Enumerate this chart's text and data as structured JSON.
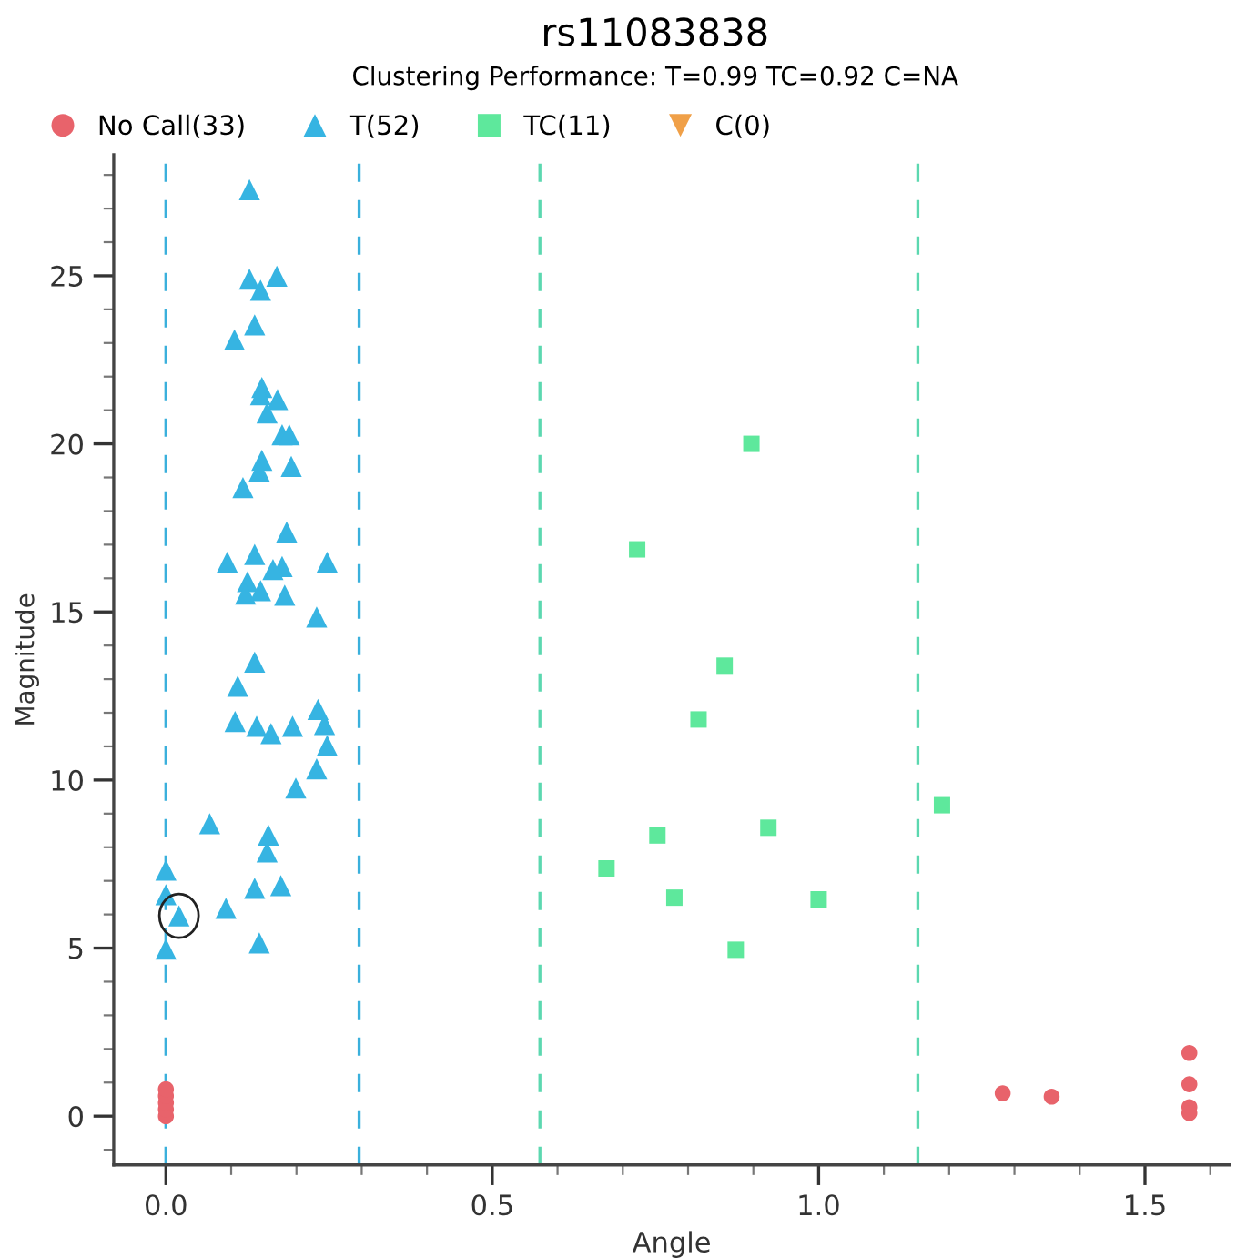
{
  "chart_data": {
    "type": "scatter",
    "title": "rs11083838",
    "subtitle": "Clustering Performance: T=0.99 TC=0.92 C=NA",
    "xlabel": "Angle",
    "ylabel": "Magnitude",
    "xlim": [
      -0.08,
      1.63
    ],
    "ylim": [
      -1.45,
      28.6
    ],
    "xticks": [
      {
        "value": 0,
        "label": "0.0"
      },
      {
        "value": 0.1,
        "label": null
      },
      {
        "value": 0.2,
        "label": null
      },
      {
        "value": 0.3,
        "label": null
      },
      {
        "value": 0.4,
        "label": null
      },
      {
        "value": 0.5,
        "label": "0.5"
      },
      {
        "value": 0.6,
        "label": null
      },
      {
        "value": 0.7,
        "label": null
      },
      {
        "value": 0.8,
        "label": null
      },
      {
        "value": 0.9,
        "label": null
      },
      {
        "value": 1.0,
        "label": "1.0"
      },
      {
        "value": 1.1,
        "label": null
      },
      {
        "value": 1.2,
        "label": null
      },
      {
        "value": 1.3,
        "label": null
      },
      {
        "value": 1.4,
        "label": null
      },
      {
        "value": 1.5,
        "label": "1.5"
      },
      {
        "value": 1.6,
        "label": null
      }
    ],
    "yticks": [
      {
        "value": -1,
        "label": null
      },
      0,
      {
        "value": 1,
        "label": null
      },
      {
        "value": 2,
        "label": null
      },
      {
        "value": 3,
        "label": null
      },
      {
        "value": 4,
        "label": null
      },
      5,
      {
        "value": 6,
        "label": null
      },
      {
        "value": 7,
        "label": null
      },
      {
        "value": 8,
        "label": null
      },
      {
        "value": 9,
        "label": null
      },
      10,
      {
        "value": 11,
        "label": null
      },
      {
        "value": 12,
        "label": null
      },
      {
        "value": 13,
        "label": null
      },
      {
        "value": 14,
        "label": null
      },
      15,
      {
        "value": 16,
        "label": null
      },
      {
        "value": 17,
        "label": null
      },
      {
        "value": 18,
        "label": null
      },
      {
        "value": 19,
        "label": null
      },
      20,
      {
        "value": 21,
        "label": null
      },
      {
        "value": 22,
        "label": null
      },
      {
        "value": 23,
        "label": null
      },
      {
        "value": 24,
        "label": null
      },
      25,
      {
        "value": 26,
        "label": null
      },
      {
        "value": 27,
        "label": null
      },
      {
        "value": 28,
        "label": null
      }
    ],
    "grid": false,
    "legend": "top",
    "ref_lines": [
      {
        "axis": "x",
        "value": 0.0,
        "color": "#3ab0dc",
        "line_style": "dashed"
      },
      {
        "axis": "x",
        "value": 0.296,
        "color": "#3ab0dc",
        "line_style": "dashed"
      },
      {
        "axis": "x",
        "value": 0.573,
        "color": "#5cd8b0",
        "line_style": "dashed"
      },
      {
        "axis": "x",
        "value": 1.152,
        "color": "#5cd8b0",
        "line_style": "dashed"
      }
    ],
    "series": [
      {
        "name": "No Call(33)",
        "color": "#e8636b",
        "marker": "circle",
        "x": [
          0,
          0,
          0,
          0,
          0,
          1.282,
          1.357,
          1.568,
          1.568,
          1.568,
          1.568
        ],
        "values": [
          0.0,
          0.2,
          0.4,
          0.6,
          0.8,
          0.68,
          0.58,
          1.88,
          0.95,
          0.27,
          0.09
        ]
      },
      {
        "name": "T(52)",
        "color": "#36b4e2",
        "marker": "triangle",
        "x": [
          0.128,
          0.128,
          0.17,
          0.145,
          0.136,
          0.105,
          0.147,
          0.145,
          0.171,
          0.155,
          0.178,
          0.189,
          0.147,
          0.143,
          0.192,
          0.118,
          0.185,
          0.094,
          0.136,
          0.247,
          0.178,
          0.164,
          0.125,
          0.122,
          0.145,
          0.182,
          0.231,
          0.136,
          0.11,
          0.106,
          0.139,
          0.161,
          0.194,
          0.233,
          0.243,
          0.247,
          0.231,
          0.199,
          0.067,
          0.157,
          0.155,
          0.0,
          0.136,
          0.176,
          0.0,
          0.02,
          0.092,
          0.143,
          0.0
        ],
        "values": [
          27.56,
          24.9,
          24.99,
          24.57,
          23.54,
          23.09,
          21.68,
          21.46,
          21.32,
          20.92,
          20.27,
          20.27,
          19.51,
          19.19,
          19.33,
          18.7,
          17.38,
          16.48,
          16.71,
          16.48,
          16.35,
          16.26,
          15.9,
          15.53,
          15.63,
          15.5,
          14.85,
          13.51,
          12.79,
          11.74,
          11.6,
          11.38,
          11.6,
          12.1,
          11.65,
          11.02,
          10.33,
          9.76,
          8.7,
          8.36,
          7.86,
          7.32,
          6.78,
          6.86,
          6.59,
          5.96,
          6.18,
          5.15,
          4.97
        ]
      },
      {
        "name": "TC(11)",
        "color": "#5ee89c",
        "marker": "square",
        "x": [
          0.897,
          0.722,
          0.856,
          0.816,
          1.189,
          0.923,
          0.753,
          0.675,
          0.779,
          1.0,
          0.873
        ],
        "values": [
          20.0,
          16.86,
          13.4,
          11.8,
          9.25,
          8.58,
          8.35,
          7.37,
          6.5,
          6.45,
          4.95
        ]
      },
      {
        "name": "C(0)",
        "color": "#f0a048",
        "marker": "triangle_down"
      }
    ]
  }
}
